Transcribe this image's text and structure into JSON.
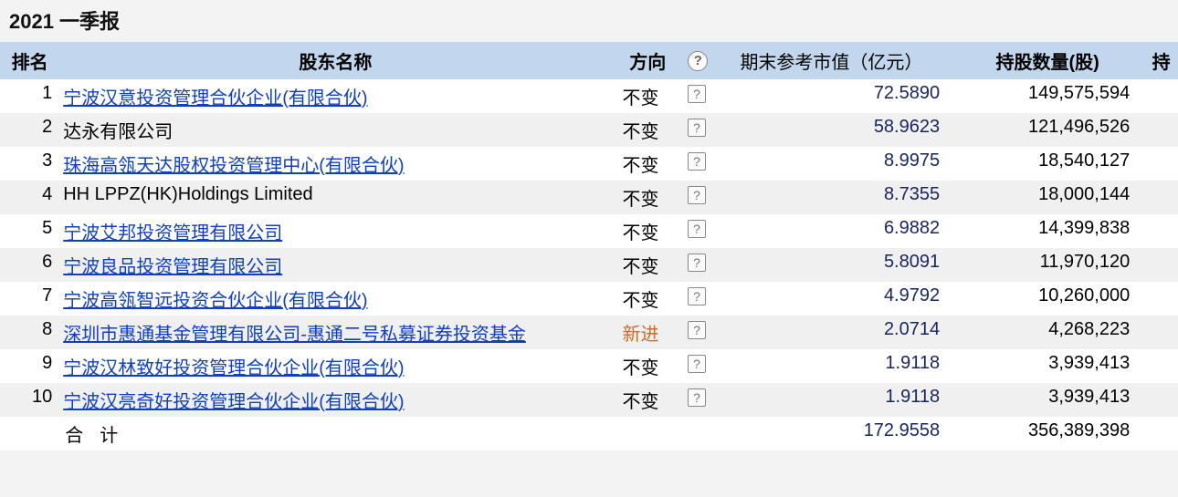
{
  "title": "2021 一季报",
  "columns": {
    "rank": "排名",
    "name": "股东名称",
    "direction": "方向",
    "help": "?",
    "market_value": "期末参考市值（亿元）",
    "shares": "持股数量(股)",
    "extra": "持"
  },
  "help_glyph": "?",
  "rows": [
    {
      "rank": "1",
      "name": "宁波汉意投资管理合伙企业(有限合伙)",
      "is_link": true,
      "direction": "不变",
      "dir_new": false,
      "market_value": "72.5890",
      "shares": "149,575,594"
    },
    {
      "rank": "2",
      "name": "达永有限公司",
      "is_link": false,
      "direction": "不变",
      "dir_new": false,
      "market_value": "58.9623",
      "shares": "121,496,526"
    },
    {
      "rank": "3",
      "name": "珠海高瓴天达股权投资管理中心(有限合伙)",
      "is_link": true,
      "direction": "不变",
      "dir_new": false,
      "market_value": "8.9975",
      "shares": "18,540,127"
    },
    {
      "rank": "4",
      "name": "HH LPPZ(HK)Holdings Limited",
      "is_link": false,
      "direction": "不变",
      "dir_new": false,
      "market_value": "8.7355",
      "shares": "18,000,144"
    },
    {
      "rank": "5",
      "name": "宁波艾邦投资管理有限公司",
      "is_link": true,
      "direction": "不变",
      "dir_new": false,
      "market_value": "6.9882",
      "shares": "14,399,838"
    },
    {
      "rank": "6",
      "name": "宁波良品投资管理有限公司",
      "is_link": true,
      "direction": "不变",
      "dir_new": false,
      "market_value": "5.8091",
      "shares": "11,970,120"
    },
    {
      "rank": "7",
      "name": "宁波高瓴智远投资合伙企业(有限合伙)",
      "is_link": true,
      "direction": "不变",
      "dir_new": false,
      "market_value": "4.9792",
      "shares": "10,260,000"
    },
    {
      "rank": "8",
      "name": "深圳市惠通基金管理有限公司-惠通二号私募证券投资基金",
      "is_link": true,
      "direction": "新进",
      "dir_new": true,
      "market_value": "2.0714",
      "shares": "4,268,223"
    },
    {
      "rank": "9",
      "name": "宁波汉林致好投资管理合伙企业(有限合伙)",
      "is_link": true,
      "direction": "不变",
      "dir_new": false,
      "market_value": "1.9118",
      "shares": "3,939,413"
    },
    {
      "rank": "10",
      "name": "宁波汉亮奇好投资管理合伙企业(有限合伙)",
      "is_link": true,
      "direction": "不变",
      "dir_new": false,
      "market_value": "1.9118",
      "shares": "3,939,413"
    }
  ],
  "total": {
    "label": "合计",
    "market_value": "172.9558",
    "shares": "356,389,398"
  },
  "colors": {
    "header_bg": "#c2d7ed",
    "row_even_bg": "#f0f0f0",
    "row_odd_bg": "#ffffff",
    "link_color": "#1040c0",
    "value_color": "#18245e",
    "new_dir_color": "#d46a1a",
    "page_bg": "#f3f3f3"
  }
}
